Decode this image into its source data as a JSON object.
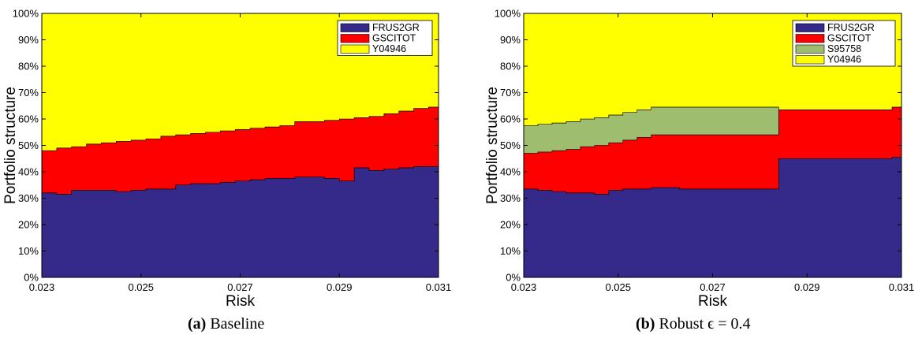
{
  "colors": {
    "FRUS2GR": "#35298a",
    "GSCITOT": "#ff0000",
    "S95758": "#9fbd6e",
    "Y04946": "#ffff00"
  },
  "chart_data": [
    {
      "type": "area",
      "title": "",
      "xlabel": "Risk",
      "ylabel": "Portfolio structure",
      "xlim": [
        0.023,
        0.031
      ],
      "ylim": [
        0,
        100
      ],
      "xticks": [
        "0.023",
        "0.025",
        "0.027",
        "0.029",
        "0.031"
      ],
      "yticks": [
        "0%",
        "10%",
        "20%",
        "30%",
        "40%",
        "50%",
        "60%",
        "70%",
        "80%",
        "90%",
        "100%"
      ],
      "legend_position": "top-right",
      "x": [
        0.023,
        0.0233,
        0.0236,
        0.0239,
        0.0242,
        0.0245,
        0.0248,
        0.0251,
        0.0254,
        0.0257,
        0.026,
        0.0263,
        0.0266,
        0.0269,
        0.0272,
        0.0275,
        0.0278,
        0.0281,
        0.0284,
        0.0287,
        0.029,
        0.0293,
        0.0296,
        0.0299,
        0.0302,
        0.0305,
        0.0308,
        0.031
      ],
      "series": [
        {
          "name": "FRUS2GR",
          "values": [
            32,
            31.5,
            33,
            33,
            33,
            32.5,
            33,
            33.5,
            33.5,
            35,
            35.5,
            35.5,
            36,
            36.5,
            37,
            37.5,
            37.5,
            38,
            38,
            37.5,
            36.5,
            41.5,
            40.5,
            41,
            41.5,
            42,
            42,
            42.5
          ]
        },
        {
          "name": "GSCITOT",
          "values": [
            16,
            17.5,
            16.5,
            17.5,
            18,
            19,
            19,
            19,
            20,
            19,
            19,
            19.5,
            19.5,
            19.5,
            19.5,
            19.5,
            20,
            21,
            21,
            22,
            23.5,
            19,
            20.5,
            21,
            21.5,
            22,
            22.5,
            22.5
          ]
        },
        {
          "name": "Y04946",
          "values": [
            52,
            51,
            50.5,
            49.5,
            49,
            48.5,
            48,
            47.5,
            46.5,
            46,
            45.5,
            45,
            44.5,
            44,
            43.5,
            43,
            42.5,
            41,
            41,
            40.5,
            40,
            39.5,
            39,
            38,
            37,
            36,
            35.5,
            35
          ]
        }
      ],
      "caption": {
        "label": "(a)",
        "text": " Baseline"
      }
    },
    {
      "type": "area",
      "title": "",
      "xlabel": "Risk",
      "ylabel": "Portfolio structure",
      "xlim": [
        0.023,
        0.031
      ],
      "ylim": [
        0,
        100
      ],
      "xticks": [
        "0.023",
        "0.025",
        "0.027",
        "0.029",
        "0.031"
      ],
      "yticks": [
        "0%",
        "10%",
        "20%",
        "30%",
        "40%",
        "50%",
        "60%",
        "70%",
        "80%",
        "90%",
        "100%"
      ],
      "legend_position": "top-right",
      "x": [
        0.023,
        0.0233,
        0.0236,
        0.0239,
        0.0242,
        0.0245,
        0.0248,
        0.0251,
        0.0254,
        0.0257,
        0.026,
        0.0263,
        0.0266,
        0.0269,
        0.0272,
        0.0275,
        0.0278,
        0.0281,
        0.0284,
        0.0287,
        0.029,
        0.0293,
        0.0296,
        0.0299,
        0.0302,
        0.0305,
        0.0308,
        0.031
      ],
      "series": [
        {
          "name": "FRUS2GR",
          "values": [
            33.5,
            33,
            32.5,
            32,
            32,
            31.5,
            33,
            33.5,
            33.5,
            34,
            34,
            33.5,
            33.5,
            33.5,
            33.5,
            33.5,
            33.5,
            33.5,
            45,
            45,
            45,
            45,
            45,
            45,
            45,
            45,
            45.5,
            46
          ]
        },
        {
          "name": "GSCITOT",
          "values": [
            13.5,
            14.5,
            15.5,
            16.5,
            17.5,
            18.5,
            18,
            18.5,
            19.5,
            20,
            20,
            20.5,
            20.5,
            20.5,
            20.5,
            20.5,
            20.5,
            20.5,
            18.5,
            18.5,
            18.5,
            18.5,
            18.5,
            18.5,
            18.5,
            18.5,
            19,
            19
          ]
        },
        {
          "name": "S95758",
          "values": [
            10.5,
            10.5,
            10.5,
            10.5,
            10.5,
            10.5,
            10.5,
            10.5,
            10.5,
            10.5,
            10.5,
            10.5,
            10.5,
            10.5,
            10.5,
            10.5,
            10.5,
            10.5,
            0,
            0,
            0,
            0,
            0,
            0,
            0,
            0,
            0,
            0
          ]
        },
        {
          "name": "Y04946",
          "values": [
            42.5,
            42,
            41.5,
            41,
            40,
            39.5,
            38.5,
            37.5,
            36.5,
            35.5,
            35.5,
            35.5,
            35.5,
            35.5,
            35.5,
            35.5,
            35.5,
            35.5,
            36.5,
            36.5,
            36.5,
            36.5,
            36.5,
            36.5,
            36.5,
            36.5,
            35.5,
            35
          ]
        }
      ],
      "caption": {
        "label": "(b)",
        "text": " Robust ϵ = 0.4"
      }
    }
  ]
}
